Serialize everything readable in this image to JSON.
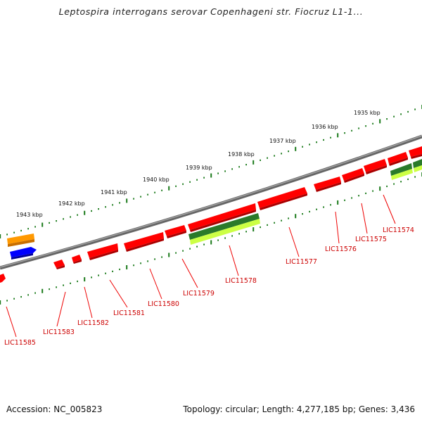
{
  "title": "Leptospira interrogans serovar Copenhageni str. Fiocruz L1-1...",
  "footer": {
    "accession": "Accession: NC_005823",
    "topology": "Topology: circular; Length: 4,277,185 bp; Genes: 3,436"
  },
  "colors": {
    "backbone": "#777777",
    "tick_green": "#1a7a1a",
    "gene_red": "#ff0000",
    "label_red": "#cc0000"
  },
  "scale": [
    {
      "label": "1943 kbp"
    },
    {
      "label": "1942 kbp"
    },
    {
      "label": "1941 kbp"
    },
    {
      "label": "1940 kbp"
    },
    {
      "label": "1939 kbp"
    },
    {
      "label": "1938 kbp"
    },
    {
      "label": "1937 kbp"
    },
    {
      "label": "1936 kbp"
    },
    {
      "label": "1935 kbp"
    }
  ],
  "genes": [
    {
      "label": "LIC11585"
    },
    {
      "label": "LIC11583"
    },
    {
      "label": "LIC11582"
    },
    {
      "label": "LIC11581"
    },
    {
      "label": "LIC11580"
    },
    {
      "label": "LIC11579"
    },
    {
      "label": "LIC11578"
    },
    {
      "label": "LIC11577"
    },
    {
      "label": "LIC11576"
    },
    {
      "label": "LIC11575"
    },
    {
      "label": "LIC11574"
    }
  ]
}
